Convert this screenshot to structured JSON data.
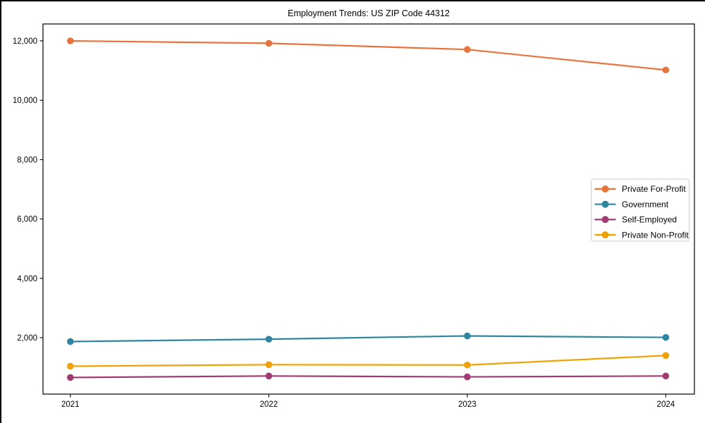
{
  "page": {
    "background": "#ffffff",
    "frame_edge_color": "#000000"
  },
  "chart_data": {
    "type": "line",
    "title": "Employment Trends: US ZIP Code 44312",
    "x_labels": [
      "2021",
      "2022",
      "2023",
      "2024"
    ],
    "series": [
      {
        "name": "Private For-Profit",
        "color": "#E8743B",
        "values": [
          12000,
          11920,
          11710,
          11020
        ]
      },
      {
        "name": "Government",
        "color": "#2E86A0",
        "values": [
          1870,
          1950,
          2060,
          2010
        ]
      },
      {
        "name": "Self-Employed",
        "color": "#A23B72",
        "values": [
          660,
          710,
          680,
          710
        ]
      },
      {
        "name": "Private Non-Profit",
        "color": "#F2A104",
        "values": [
          1040,
          1090,
          1080,
          1400
        ]
      }
    ],
    "ylim": [
      100,
      12570
    ],
    "yticks": [
      2000,
      4000,
      6000,
      8000,
      10000,
      12000
    ],
    "ytick_labels": [
      "2,000",
      "4,000",
      "6,000",
      "8,000",
      "10,000",
      "12,000"
    ],
    "grid": false,
    "legend_position": "center-right",
    "axis_color": "#000000",
    "legend_border_color": "#cccccc",
    "legend_background": "#ffffff"
  }
}
